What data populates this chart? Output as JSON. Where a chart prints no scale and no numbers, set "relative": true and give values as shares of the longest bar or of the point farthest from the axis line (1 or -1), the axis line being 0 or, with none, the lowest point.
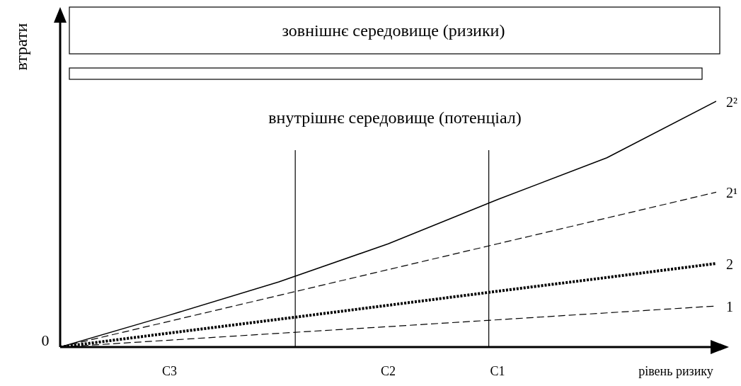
{
  "chart_data": {
    "type": "line",
    "relative": true,
    "xlabel": "рівень ризику",
    "ylabel": "втрати",
    "tick_labels": "x",
    "grid": false,
    "legend": false,
    "marker": "none",
    "categories": [
      null,
      "C3",
      null,
      "C2",
      "C1",
      null,
      null
    ],
    "series": [
      {
        "name": "1",
        "color": "#000000",
        "line_style": "dashed",
        "values": [
          0,
          0.028,
          0.056,
          0.083,
          0.111,
          0.139,
          0.167
        ]
      },
      {
        "name": "2",
        "color": "#000000",
        "line_style": "dotted",
        "values": [
          0,
          0.057,
          0.113,
          0.17,
          0.227,
          0.283,
          0.34
        ]
      },
      {
        "name": "2¹",
        "color": "#000000",
        "line_style": "dashed",
        "values": [
          0,
          0.105,
          0.21,
          0.315,
          0.42,
          0.525,
          0.63
        ]
      },
      {
        "name": "2²",
        "color": "#000000",
        "line_style": "solid",
        "values": [
          0,
          0.13,
          0.265,
          0.42,
          0.6,
          0.77,
          1
        ]
      }
    ],
    "annotations": [
      "0",
      "зовнішнє середовище (ризики)",
      "внутрішнє середовище (потенціал)"
    ]
  }
}
